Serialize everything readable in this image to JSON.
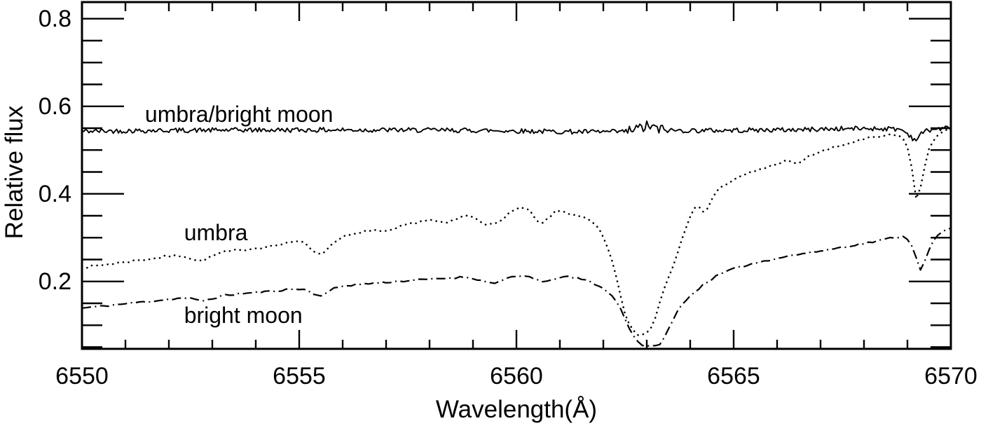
{
  "figure": {
    "background": "#ffffff",
    "ink_color": "#000000"
  },
  "chart_data": {
    "type": "line",
    "title": "",
    "xlabel": "Wavelength(Å)",
    "ylabel": "Relative flux",
    "xlim": [
      6550,
      6570
    ],
    "ylim": [
      0.046,
      0.838
    ],
    "grid": false,
    "legend_position": "inline-annotations",
    "x_major_ticks": [
      {
        "value": 6550,
        "label": "6550"
      },
      {
        "value": 6555,
        "label": "6555"
      },
      {
        "value": 6560,
        "label": "6560"
      },
      {
        "value": 6565,
        "label": "6565"
      },
      {
        "value": 6570,
        "label": "6570"
      }
    ],
    "x_minor_tick_step": 1,
    "y_major_ticks": [
      {
        "value": 0.8,
        "label": "0.8"
      },
      {
        "value": 0.6,
        "label": "0.6"
      },
      {
        "value": 0.4,
        "label": "0.4"
      },
      {
        "value": 0.2,
        "label": "0.2"
      }
    ],
    "y_minor_tick_step": 0.05,
    "annotations": [
      {
        "series": "umbra/bright moon",
        "label": "umbra/bright moon",
        "x": 6551.45,
        "y": 0.582
      },
      {
        "series": "umbra",
        "label": "umbra",
        "x": 6552.35,
        "y": 0.312
      },
      {
        "series": "bright moon",
        "label": "bright moon",
        "x": 6552.35,
        "y": 0.123
      }
    ],
    "series": [
      {
        "name": "umbra/bright moon",
        "line_style": "solid",
        "description": "flat noisy ratio spectrum near 0.545, extra noise at H-alpha 6563, narrow dip at 6569.2",
        "noise": {
          "amplitude": 0.0055,
          "enhanced_range": [
            6562.55,
            6563.45
          ],
          "enhanced_amplitude": 0.013,
          "seed": 42,
          "sample_step": 0.04
        },
        "points": [
          [
            6550,
            0.543
          ],
          [
            6552,
            0.545
          ],
          [
            6556,
            0.546
          ],
          [
            6559,
            0.545
          ],
          [
            6562.4,
            0.542
          ],
          [
            6562.9,
            0.551
          ],
          [
            6563.05,
            0.555
          ],
          [
            6563.2,
            0.549
          ],
          [
            6563.5,
            0.545
          ],
          [
            6566,
            0.546
          ],
          [
            6568.8,
            0.548
          ],
          [
            6569.05,
            0.534
          ],
          [
            6569.18,
            0.524
          ],
          [
            6569.4,
            0.543
          ],
          [
            6570,
            0.551
          ]
        ]
      },
      {
        "name": "umbra",
        "line_style": "dotted",
        "description": "umbra spectrum rising from 0.23 to 0.53 with deep H-alpha absorption at 6562.8 (min 0.08) and narrow line at 6569.2 (min 0.38)",
        "noise": {
          "amplitude": 0.0028,
          "seed": 7,
          "sample_step": 0.1
        },
        "points": [
          [
            6550,
            0.231
          ],
          [
            6550.8,
            0.242
          ],
          [
            6551.6,
            0.252
          ],
          [
            6552.3,
            0.259
          ],
          [
            6552.7,
            0.247
          ],
          [
            6553.2,
            0.265
          ],
          [
            6554,
            0.276
          ],
          [
            6554.7,
            0.286
          ],
          [
            6555.1,
            0.291
          ],
          [
            6555.45,
            0.262
          ],
          [
            6555.9,
            0.297
          ],
          [
            6556.4,
            0.31
          ],
          [
            6556.7,
            0.318
          ],
          [
            6556.95,
            0.312
          ],
          [
            6557.5,
            0.33
          ],
          [
            6558,
            0.34
          ],
          [
            6558.35,
            0.333
          ],
          [
            6558.9,
            0.35
          ],
          [
            6559.45,
            0.329
          ],
          [
            6559.9,
            0.36
          ],
          [
            6560.25,
            0.365
          ],
          [
            6560.55,
            0.332
          ],
          [
            6560.9,
            0.359
          ],
          [
            6561.2,
            0.356
          ],
          [
            6561.5,
            0.347
          ],
          [
            6561.8,
            0.33
          ],
          [
            6562,
            0.3
          ],
          [
            6562.2,
            0.245
          ],
          [
            6562.35,
            0.19
          ],
          [
            6562.5,
            0.125
          ],
          [
            6562.65,
            0.092
          ],
          [
            6562.8,
            0.079
          ],
          [
            6563,
            0.083
          ],
          [
            6563.15,
            0.105
          ],
          [
            6563.35,
            0.17
          ],
          [
            6563.6,
            0.235
          ],
          [
            6563.85,
            0.31
          ],
          [
            6564.05,
            0.36
          ],
          [
            6564.2,
            0.368
          ],
          [
            6564.35,
            0.362
          ],
          [
            6564.6,
            0.405
          ],
          [
            6565,
            0.431
          ],
          [
            6565.4,
            0.449
          ],
          [
            6565.9,
            0.465
          ],
          [
            6566.2,
            0.475
          ],
          [
            6566.45,
            0.469
          ],
          [
            6566.8,
            0.489
          ],
          [
            6567.3,
            0.505
          ],
          [
            6567.9,
            0.522
          ],
          [
            6568.4,
            0.531
          ],
          [
            6568.75,
            0.533
          ],
          [
            6568.95,
            0.52
          ],
          [
            6569.1,
            0.46
          ],
          [
            6569.22,
            0.383
          ],
          [
            6569.35,
            0.44
          ],
          [
            6569.5,
            0.505
          ],
          [
            6569.7,
            0.533
          ],
          [
            6570,
            0.548
          ]
        ]
      },
      {
        "name": "bright moon",
        "line_style": "dashdot",
        "description": "bright moon spectrum rising from 0.14 to 0.32 with deep H-alpha absorption at 6563.0 (min 0.05) and narrow line at 6569.3 (min 0.23)",
        "noise": {
          "amplitude": 0.0022,
          "seed": 11,
          "sample_step": 0.1
        },
        "points": [
          [
            6550,
            0.139
          ],
          [
            6550.8,
            0.147
          ],
          [
            6551.6,
            0.155
          ],
          [
            6552.4,
            0.162
          ],
          [
            6552.75,
            0.156
          ],
          [
            6553.3,
            0.168
          ],
          [
            6554.2,
            0.176
          ],
          [
            6555.1,
            0.182
          ],
          [
            6555.45,
            0.168
          ],
          [
            6555.9,
            0.187
          ],
          [
            6556.6,
            0.195
          ],
          [
            6557.4,
            0.201
          ],
          [
            6558.2,
            0.206
          ],
          [
            6558.9,
            0.209
          ],
          [
            6559.45,
            0.197
          ],
          [
            6559.9,
            0.209
          ],
          [
            6560.3,
            0.211
          ],
          [
            6560.65,
            0.198
          ],
          [
            6561,
            0.21
          ],
          [
            6561.5,
            0.205
          ],
          [
            6561.9,
            0.19
          ],
          [
            6562.1,
            0.175
          ],
          [
            6562.3,
            0.155
          ],
          [
            6562.5,
            0.115
          ],
          [
            6562.7,
            0.075
          ],
          [
            6562.9,
            0.055
          ],
          [
            6563.1,
            0.051
          ],
          [
            6563.3,
            0.058
          ],
          [
            6563.5,
            0.09
          ],
          [
            6563.7,
            0.13
          ],
          [
            6563.9,
            0.158
          ],
          [
            6564.1,
            0.175
          ],
          [
            6564.4,
            0.2
          ],
          [
            6564.9,
            0.225
          ],
          [
            6565.5,
            0.242
          ],
          [
            6566.2,
            0.257
          ],
          [
            6566.9,
            0.268
          ],
          [
            6567.6,
            0.28
          ],
          [
            6568.3,
            0.292
          ],
          [
            6568.8,
            0.302
          ],
          [
            6569,
            0.297
          ],
          [
            6569.15,
            0.272
          ],
          [
            6569.3,
            0.228
          ],
          [
            6569.5,
            0.272
          ],
          [
            6569.65,
            0.3
          ],
          [
            6569.85,
            0.315
          ],
          [
            6570,
            0.322
          ]
        ]
      }
    ]
  }
}
